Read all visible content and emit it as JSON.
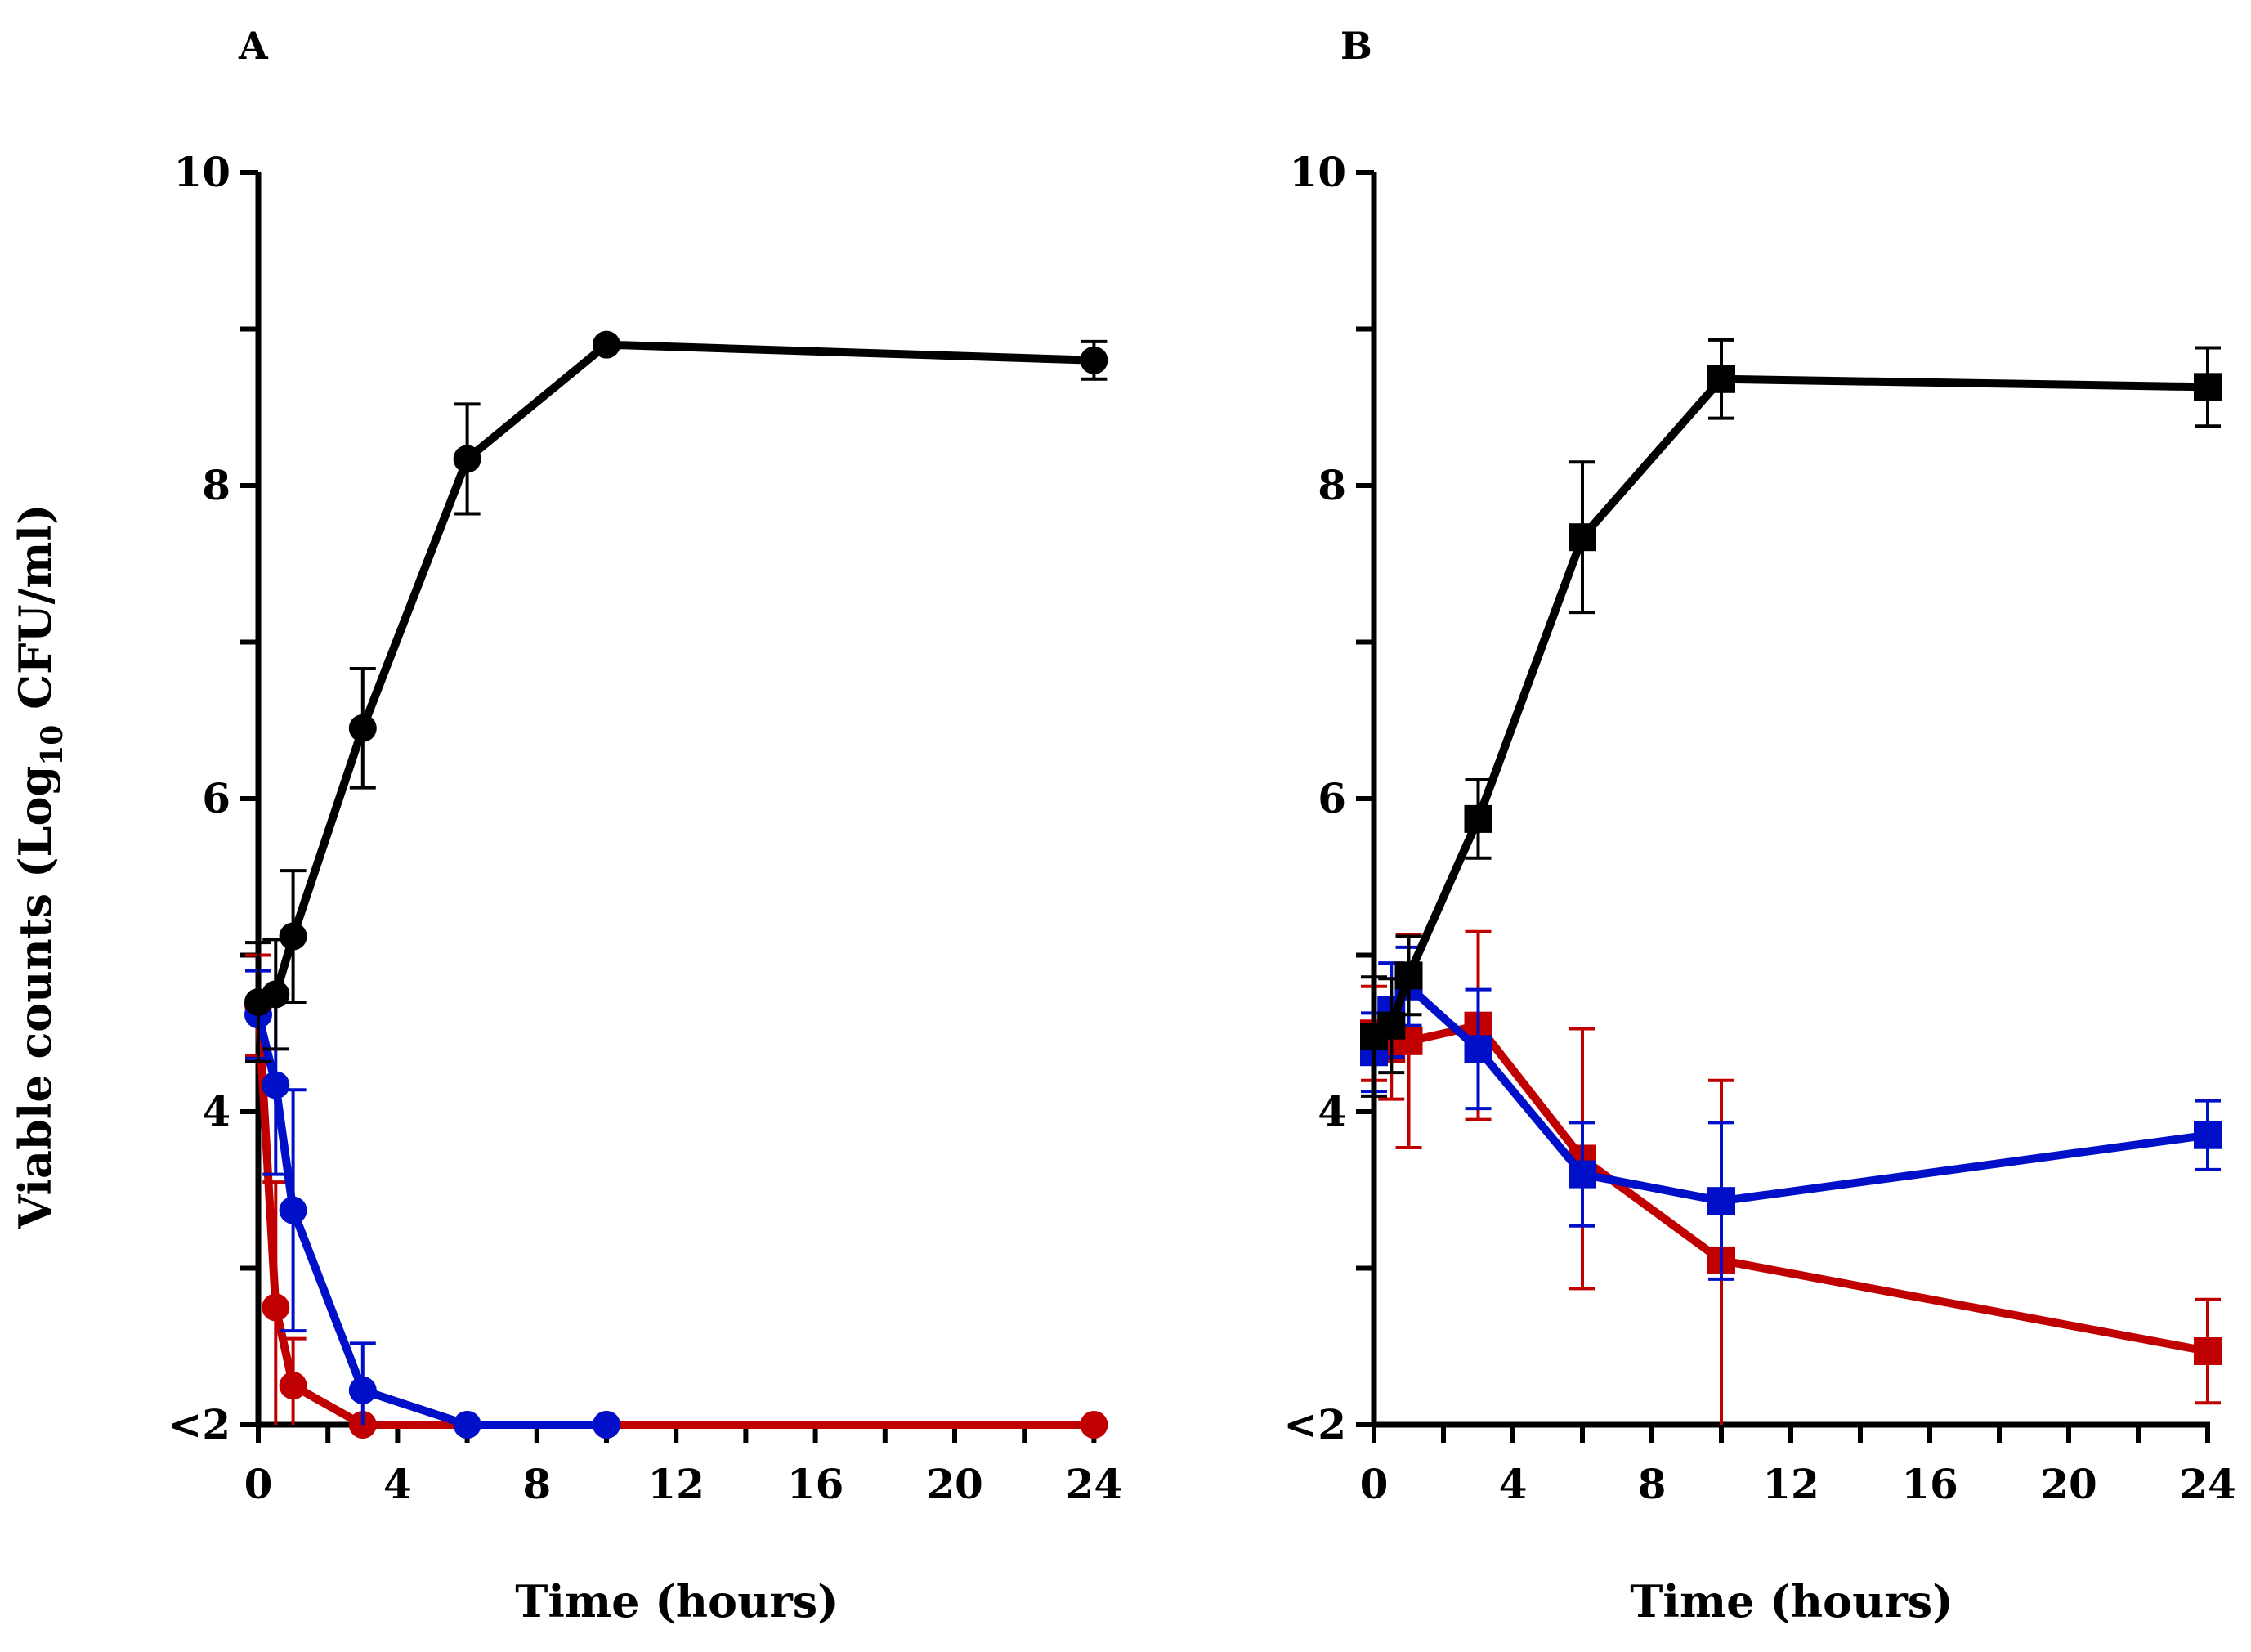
{
  "chart_data": [
    {
      "panel": "A",
      "type": "line",
      "marker": "circle",
      "xlabel": "Time (hours)",
      "ylabel": "Viable counts (Log10 CFU/ml)",
      "ylabel_main": "Viable counts (Log",
      "ylabel_sub": "10",
      "ylabel_end": " CFU/ml)",
      "xlim": [
        0,
        24
      ],
      "ylim": [
        2,
        10
      ],
      "xticks": [
        0,
        4,
        8,
        12,
        16,
        20,
        24
      ],
      "xtick_labels": [
        "0",
        "4",
        "8",
        "12",
        "16",
        "20",
        "24"
      ],
      "yticks": [
        2,
        4,
        6,
        8,
        10
      ],
      "ytick_labels": [
        "<2",
        "4",
        "6",
        "8",
        "10"
      ],
      "series": [
        {
          "name": "black",
          "color": "#000000",
          "x": [
            0,
            0.5,
            1,
            3,
            6,
            10,
            24
          ],
          "y": [
            4.7,
            4.75,
            5.12,
            6.45,
            8.17,
            8.9,
            8.8
          ],
          "err": [
            0.38,
            0.35,
            0.42,
            0.38,
            0.35,
            0.0,
            0.12
          ]
        },
        {
          "name": "blue",
          "color": "#0010c8",
          "x": [
            0,
            0.5,
            1,
            3,
            6,
            10
          ],
          "y": [
            4.62,
            4.17,
            3.37,
            2.22,
            2.0,
            2.0
          ],
          "err": [
            0.28,
            0.57,
            0.77,
            0.3,
            0.0,
            0.0
          ]
        },
        {
          "name": "red",
          "color": "#c00000",
          "x": [
            0,
            0.5,
            1,
            3,
            6,
            10,
            24
          ],
          "y": [
            4.68,
            2.75,
            2.25,
            2.0,
            2.0,
            2.0,
            2.0
          ],
          "err": [
            0.32,
            0.8,
            0.3,
            0.0,
            0.0,
            0.0,
            0.0
          ]
        }
      ]
    },
    {
      "panel": "B",
      "type": "line",
      "marker": "square",
      "xlabel": "Time (hours)",
      "xlim": [
        0,
        24
      ],
      "ylim": [
        2,
        10
      ],
      "xticks": [
        0,
        4,
        8,
        12,
        16,
        20,
        24
      ],
      "xtick_labels": [
        "0",
        "4",
        "8",
        "12",
        "16",
        "20",
        "24"
      ],
      "yticks": [
        2,
        4,
        6,
        8,
        10
      ],
      "ytick_labels": [
        "<2",
        "4",
        "6",
        "8",
        "10"
      ],
      "series": [
        {
          "name": "black",
          "color": "#000000",
          "x": [
            0,
            0.5,
            1,
            3,
            6,
            10,
            24
          ],
          "y": [
            4.48,
            4.55,
            4.87,
            5.87,
            7.67,
            8.68,
            8.63
          ],
          "err": [
            0.38,
            0.3,
            0.25,
            0.25,
            0.48,
            0.25,
            0.25
          ]
        },
        {
          "name": "blue",
          "color": "#0010c8",
          "x": [
            0,
            0.5,
            1,
            3,
            6,
            10,
            24
          ],
          "y": [
            4.38,
            4.65,
            4.8,
            4.4,
            3.6,
            3.43,
            3.85
          ],
          "err": [
            0.25,
            0.3,
            0.25,
            0.38,
            0.33,
            0.5,
            0.22
          ]
        },
        {
          "name": "red",
          "color": "#c00000",
          "x": [
            0,
            0.5,
            1,
            3,
            6,
            10,
            24
          ],
          "y": [
            4.5,
            4.4,
            4.45,
            4.55,
            3.7,
            3.05,
            2.47
          ],
          "err": [
            0.3,
            0.32,
            0.68,
            0.6,
            0.83,
            1.15,
            0.33
          ]
        }
      ]
    }
  ]
}
